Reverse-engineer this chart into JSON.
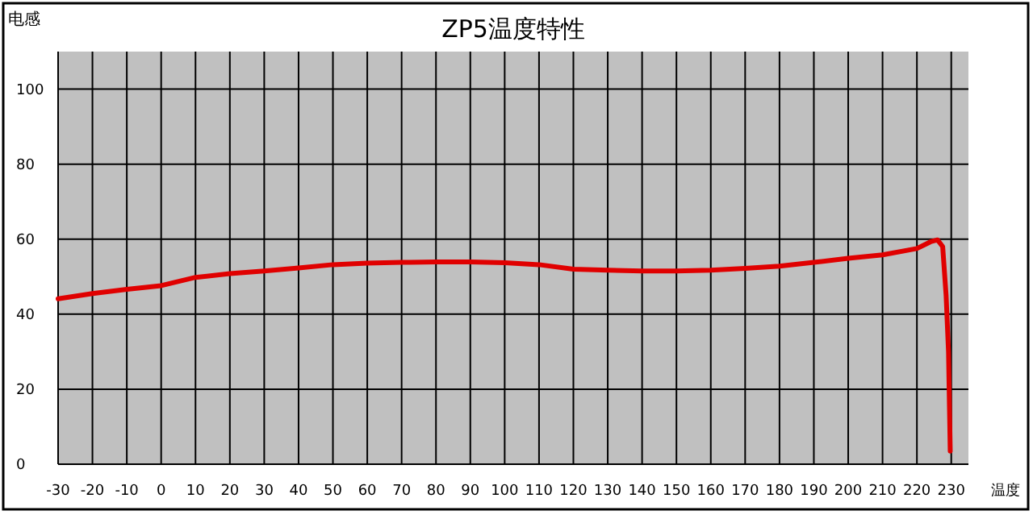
{
  "chart_data": {
    "type": "line",
    "title": "ZP5温度特性",
    "ylabel": "电感",
    "xlabel": "温度",
    "x": [
      -30,
      -20,
      -10,
      0,
      10,
      20,
      30,
      40,
      50,
      60,
      70,
      80,
      90,
      100,
      110,
      120,
      130,
      140,
      150,
      160,
      170,
      180,
      190,
      200,
      210,
      220,
      224,
      226,
      227.5,
      228.5,
      229.2,
      229.7
    ],
    "series": [
      {
        "color": "#e00000",
        "values": [
          44.1,
          45.5,
          46.6,
          47.6,
          49.8,
          50.8,
          51.5,
          52.3,
          53.2,
          53.6,
          53.8,
          53.9,
          53.9,
          53.7,
          53.2,
          52.0,
          51.7,
          51.5,
          51.5,
          51.7,
          52.2,
          52.8,
          53.8,
          54.9,
          55.8,
          57.5,
          59.3,
          59.8,
          58.0,
          45.0,
          30.0,
          3.5
        ]
      }
    ],
    "xlim": [
      -30,
      235
    ],
    "xticks": [
      -30,
      -20,
      -10,
      0,
      10,
      20,
      30,
      40,
      50,
      60,
      70,
      80,
      90,
      100,
      110,
      120,
      130,
      140,
      150,
      160,
      170,
      180,
      190,
      200,
      210,
      220,
      230
    ],
    "ylim": [
      0,
      110
    ],
    "yticks": [
      0,
      20,
      40,
      60,
      80,
      100
    ],
    "grid": true,
    "line_style": "solid"
  }
}
